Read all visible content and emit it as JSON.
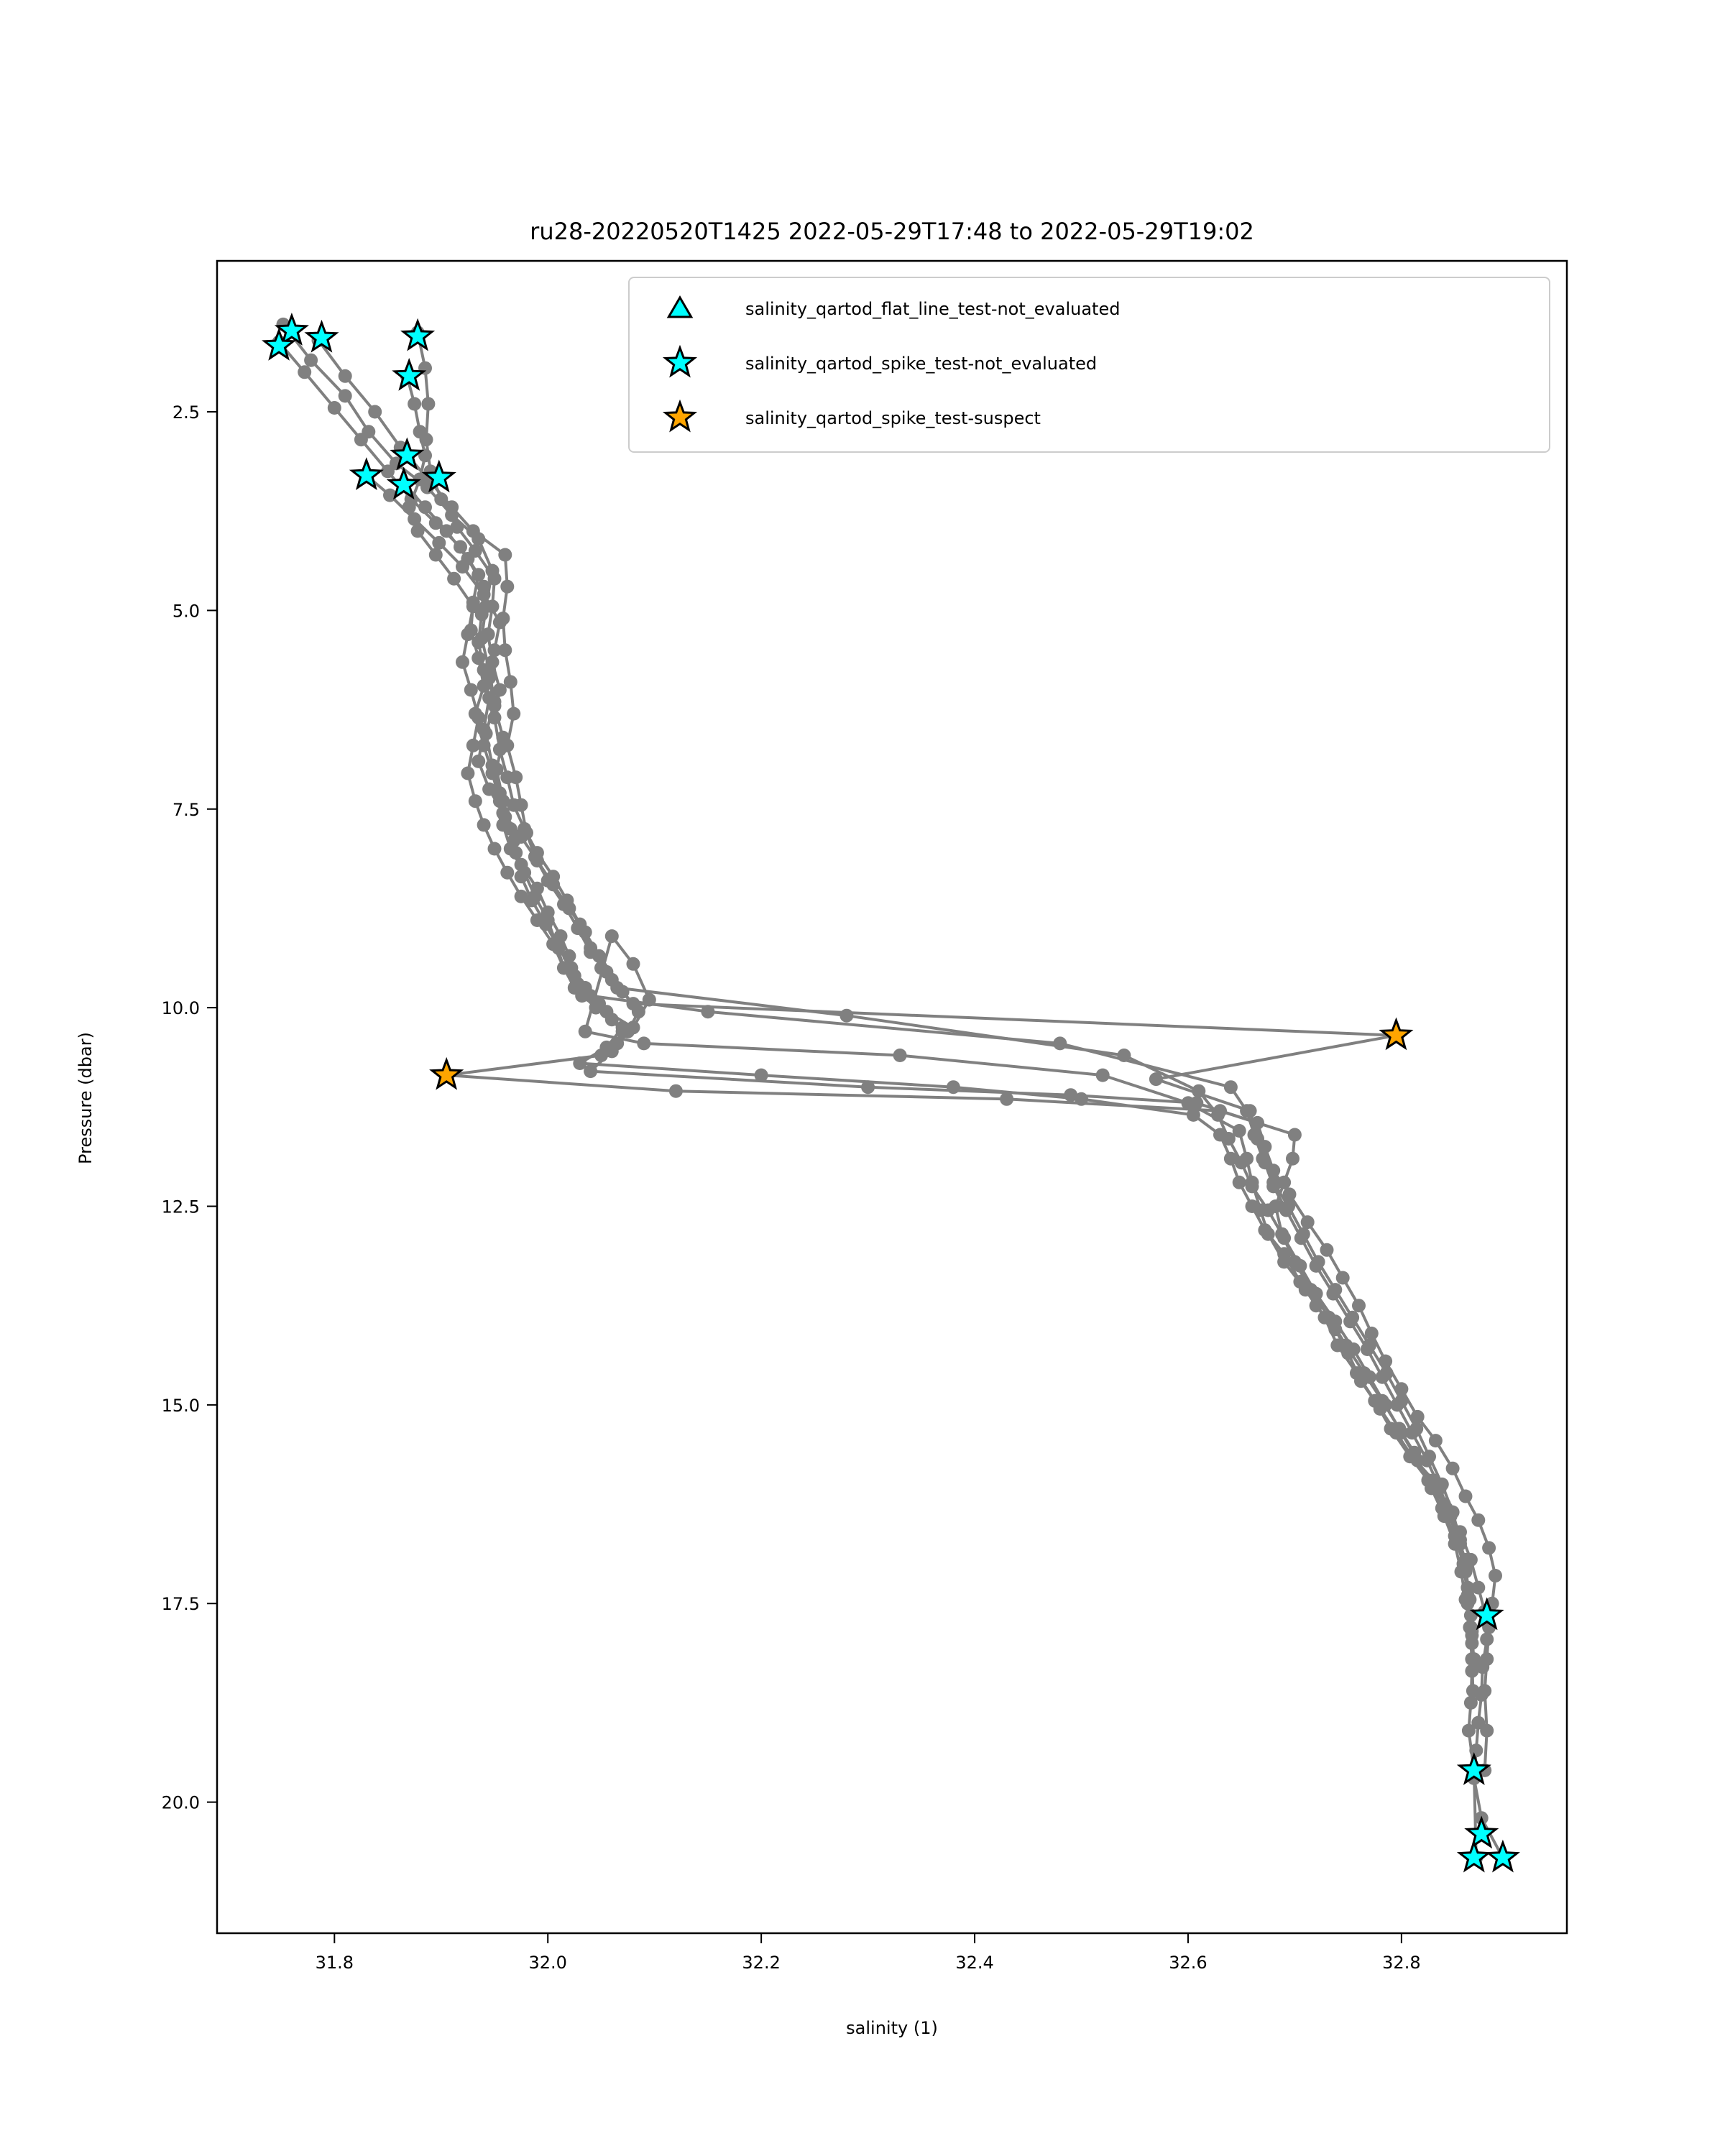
{
  "chart_data": {
    "type": "scatter",
    "title": "ru28-20220520T1425 2022-05-29T17:48 to 2022-05-29T19:02",
    "xlabel": "salinity (1)",
    "ylabel": "Pressure (dbar)",
    "xlim": [
      31.69,
      32.955
    ],
    "ylim": [
      21.65,
      0.6
    ],
    "y_inverted": true,
    "grid": false,
    "x_ticks": [
      {
        "value": 31.8,
        "label": "31.8"
      },
      {
        "value": 32.0,
        "label": "32.0"
      },
      {
        "value": 32.2,
        "label": "32.2"
      },
      {
        "value": 32.4,
        "label": "32.4"
      },
      {
        "value": 32.6,
        "label": "32.6"
      },
      {
        "value": 32.8,
        "label": "32.8"
      }
    ],
    "y_ticks": [
      {
        "value": 2.5,
        "label": "2.5"
      },
      {
        "value": 5.0,
        "label": "5.0"
      },
      {
        "value": 7.5,
        "label": "7.5"
      },
      {
        "value": 10.0,
        "label": "10.0"
      },
      {
        "value": 12.5,
        "label": "12.5"
      },
      {
        "value": 15.0,
        "label": "15.0"
      },
      {
        "value": 17.5,
        "label": "17.5"
      },
      {
        "value": 20.0,
        "label": "20.0"
      }
    ],
    "legend": {
      "placement": "top-right",
      "entries": [
        {
          "label": "salinity_qartod_flat_line_test-not_evaluated",
          "marker": "triangle",
          "color": "#00ffff"
        },
        {
          "label": "salinity_qartod_spike_test-not_evaluated",
          "marker": "star",
          "color": "#00ffff"
        },
        {
          "label": "salinity_qartod_spike_test-suspect",
          "marker": "star",
          "color": "#ffa500"
        }
      ]
    },
    "profile_color": "#808080",
    "series": [
      {
        "x": [
          31.752,
          31.778,
          31.81,
          31.832,
          31.858,
          31.887,
          31.91,
          31.935,
          31.948,
          31.942,
          31.938,
          31.945,
          31.95,
          31.942,
          31.948,
          31.955,
          31.96,
          31.968,
          31.975,
          31.99,
          32.0,
          32.012,
          32.02,
          32.025,
          32.032,
          32.055,
          32.08,
          32.095,
          32.08,
          32.06,
          32.035,
          32.09,
          32.33,
          32.52,
          32.6,
          32.648,
          32.655,
          32.66,
          32.668,
          32.675,
          32.69,
          32.71,
          32.728,
          32.74,
          32.758,
          32.775,
          32.79,
          32.808,
          32.825,
          32.84,
          32.855,
          32.865,
          32.872,
          32.878,
          32.88,
          32.876,
          32.875,
          32.872,
          32.87,
          32.868,
          32.875,
          32.895
        ],
        "y": [
          1.4,
          1.85,
          2.3,
          2.75,
          3.15,
          3.45,
          3.8,
          4.1,
          4.5,
          4.95,
          5.35,
          5.75,
          6.15,
          6.55,
          6.95,
          7.3,
          7.6,
          7.9,
          8.2,
          8.5,
          8.8,
          9.1,
          9.35,
          9.6,
          9.85,
          10.05,
          10.25,
          9.9,
          9.45,
          9.1,
          10.3,
          10.45,
          10.6,
          10.85,
          11.2,
          11.55,
          11.9,
          12.2,
          12.55,
          12.85,
          13.2,
          13.55,
          13.9,
          14.25,
          14.6,
          14.95,
          15.3,
          15.65,
          15.95,
          16.25,
          16.6,
          16.95,
          17.3,
          17.6,
          17.95,
          18.3,
          18.65,
          19.0,
          19.35,
          19.7,
          20.2,
          20.7
        ]
      },
      {
        "x": [
          31.748,
          31.772,
          31.8,
          31.825,
          31.85,
          31.872,
          31.895,
          31.918,
          31.935,
          31.93,
          31.928,
          31.935,
          31.94,
          31.932,
          31.94,
          31.948,
          31.955,
          31.958,
          31.965,
          31.978,
          31.988,
          32.0,
          32.008,
          32.015,
          32.025,
          32.045,
          32.07,
          32.055,
          32.03,
          32.2,
          32.38,
          32.5,
          32.605,
          32.63,
          32.64,
          32.648,
          32.66,
          32.672,
          32.69,
          32.705,
          32.72,
          32.738,
          32.75,
          32.762,
          32.78,
          32.795,
          32.81,
          32.83,
          32.842,
          32.852,
          32.86,
          32.862,
          32.865,
          32.866,
          32.866,
          32.865,
          32.863,
          32.868,
          32.87
        ],
        "y": [
          1.62,
          2.0,
          2.45,
          2.85,
          3.25,
          3.6,
          3.9,
          4.2,
          4.55,
          4.9,
          5.25,
          5.6,
          5.95,
          6.3,
          6.7,
          7.05,
          7.4,
          7.7,
          8.0,
          8.3,
          8.6,
          8.9,
          9.2,
          9.5,
          9.75,
          10.0,
          10.25,
          10.5,
          10.7,
          10.85,
          11.0,
          11.15,
          11.35,
          11.6,
          11.9,
          12.2,
          12.5,
          12.8,
          13.1,
          13.45,
          13.75,
          14.05,
          14.35,
          14.7,
          15.05,
          15.35,
          15.65,
          15.95,
          16.3,
          16.65,
          16.95,
          17.3,
          17.65,
          18.0,
          18.35,
          18.75,
          19.1,
          19.6,
          20.7
        ]
      },
      {
        "x": [
          31.785,
          31.81,
          31.838,
          31.862,
          31.888,
          31.91,
          31.93,
          31.96,
          31.962,
          31.958,
          31.96,
          31.965,
          31.968,
          31.962,
          31.97,
          31.975,
          31.98,
          31.988,
          32.0,
          32.015,
          32.028,
          32.04,
          32.055,
          32.07,
          32.085,
          32.075,
          32.06,
          32.04,
          32.3,
          32.49,
          32.608,
          32.665,
          32.672,
          32.68,
          32.695,
          32.712,
          32.73,
          32.745,
          32.76,
          32.772,
          32.785,
          32.8,
          32.815,
          32.832,
          32.848,
          32.86,
          32.872,
          32.882,
          32.888,
          32.885,
          32.882,
          32.88,
          32.878,
          32.88,
          32.878
        ],
        "y": [
          1.6,
          2.05,
          2.5,
          2.95,
          3.35,
          3.7,
          4.0,
          4.3,
          4.7,
          5.1,
          5.5,
          5.9,
          6.3,
          6.7,
          7.1,
          7.45,
          7.8,
          8.1,
          8.4,
          8.7,
          9.0,
          9.3,
          9.55,
          9.8,
          10.05,
          10.3,
          10.55,
          10.8,
          11.0,
          11.1,
          11.2,
          11.45,
          11.75,
          12.05,
          12.35,
          12.7,
          13.05,
          13.4,
          13.75,
          14.1,
          14.45,
          14.8,
          15.15,
          15.45,
          15.8,
          16.15,
          16.45,
          16.8,
          17.15,
          17.5,
          17.8,
          18.2,
          18.6,
          19.1,
          19.6
        ]
      },
      {
        "x": [
          31.83,
          31.852,
          31.875,
          31.898,
          31.92,
          31.94,
          31.955,
          31.95,
          31.945,
          31.95,
          31.958,
          31.952,
          31.958,
          31.965,
          31.97,
          31.975,
          31.985,
          31.998,
          32.01,
          32.022,
          32.035,
          32.048,
          32.06,
          32.07,
          32.065,
          32.05,
          31.905,
          32.12,
          32.43,
          32.63,
          32.7,
          32.698,
          32.69,
          32.682,
          32.688,
          32.7,
          32.715,
          32.732,
          32.748,
          32.765,
          32.782,
          32.798,
          32.812,
          32.825,
          32.838,
          32.85,
          32.858,
          32.862,
          32.865,
          32.868
        ],
        "y": [
          3.3,
          3.55,
          3.85,
          4.15,
          4.45,
          4.8,
          5.15,
          5.5,
          5.85,
          6.2,
          6.6,
          7.0,
          7.4,
          7.75,
          8.05,
          8.35,
          8.65,
          8.95,
          9.25,
          9.5,
          9.75,
          9.95,
          10.15,
          10.3,
          10.45,
          10.6,
          10.85,
          11.05,
          11.15,
          11.3,
          11.6,
          11.9,
          12.2,
          12.5,
          12.85,
          13.2,
          13.55,
          13.9,
          14.25,
          14.6,
          14.95,
          15.3,
          15.6,
          15.95,
          16.3,
          16.65,
          17.0,
          17.4,
          17.8,
          18.2
        ]
      },
      {
        "x": [
          31.865,
          31.885,
          31.905,
          31.925,
          31.94,
          31.938,
          31.935,
          31.94,
          31.945,
          31.94,
          31.935,
          31.945,
          31.958,
          31.975,
          31.99,
          32.005,
          32.02,
          32.035,
          32.048,
          32.06,
          32.08,
          32.795,
          32.57,
          32.658,
          32.665,
          32.672,
          32.68,
          32.692,
          32.706,
          32.72,
          32.736,
          32.752,
          32.768,
          32.782,
          32.796,
          32.81,
          32.824,
          32.836,
          32.846,
          32.855,
          32.86,
          32.862,
          32.866
        ],
        "y": [
          3.4,
          3.7,
          4.0,
          4.35,
          4.7,
          5.05,
          5.4,
          5.75,
          6.1,
          6.5,
          6.9,
          7.25,
          7.55,
          7.85,
          8.15,
          8.45,
          8.75,
          9.05,
          9.35,
          9.65,
          9.95,
          10.35,
          10.9,
          11.3,
          11.65,
          11.95,
          12.25,
          12.55,
          12.9,
          13.25,
          13.6,
          13.95,
          14.3,
          14.65,
          15.0,
          15.35,
          15.7,
          16.05,
          16.4,
          16.75,
          17.1,
          17.5,
          17.9
        ]
      },
      {
        "x": [
          31.878,
          31.885,
          31.888,
          31.886,
          31.89,
          31.9,
          31.915,
          31.932,
          31.95,
          31.948,
          31.944,
          31.948,
          31.955,
          31.95,
          31.955,
          31.962,
          31.968,
          31.978,
          31.99,
          32.005,
          32.018,
          32.03,
          32.04,
          32.05,
          32.065,
          32.28,
          32.54,
          32.61,
          32.628,
          32.638,
          32.65,
          32.66,
          32.675,
          32.69,
          32.705,
          32.72,
          32.738,
          32.755,
          32.77,
          32.785,
          32.8,
          32.815,
          32.828,
          32.84,
          32.85,
          32.856,
          32.86,
          32.864,
          32.866,
          32.867
        ],
        "y": [
          1.5,
          1.95,
          2.4,
          2.85,
          3.25,
          3.6,
          3.95,
          4.25,
          4.6,
          4.95,
          5.3,
          5.65,
          6.0,
          6.35,
          6.75,
          7.1,
          7.45,
          7.75,
          8.05,
          8.35,
          8.65,
          8.95,
          9.25,
          9.5,
          9.75,
          10.1,
          10.6,
          11.05,
          11.35,
          11.65,
          11.95,
          12.25,
          12.55,
          12.9,
          13.25,
          13.6,
          13.95,
          14.3,
          14.65,
          15.0,
          15.35,
          15.7,
          16.05,
          16.4,
          16.75,
          17.1,
          17.45,
          17.8,
          18.2,
          18.6
        ]
      },
      {
        "x": [
          31.868,
          31.875,
          31.88,
          31.885,
          31.88,
          31.87,
          31.878,
          31.895,
          31.912,
          31.93,
          31.925,
          31.92,
          31.928,
          31.935,
          31.93,
          31.925,
          31.932,
          31.94,
          31.95,
          31.962,
          31.975,
          31.99,
          32.005,
          32.015,
          32.028,
          32.04,
          32.15,
          32.48,
          32.64,
          32.655,
          32.662,
          32.67,
          32.68,
          32.694,
          32.708,
          32.722,
          32.738,
          32.754,
          32.77,
          32.786,
          32.8,
          32.814,
          32.826,
          32.838,
          32.848,
          32.855,
          32.86,
          32.864,
          32.866
        ],
        "y": [
          2.05,
          2.4,
          2.75,
          3.05,
          3.35,
          3.7,
          4.0,
          4.3,
          4.6,
          4.95,
          5.3,
          5.65,
          6.0,
          6.35,
          6.7,
          7.05,
          7.4,
          7.7,
          8.0,
          8.3,
          8.6,
          8.9,
          9.2,
          9.5,
          9.7,
          9.85,
          10.05,
          10.45,
          11.0,
          11.3,
          11.6,
          11.9,
          12.2,
          12.5,
          12.85,
          13.2,
          13.55,
          13.9,
          14.25,
          14.6,
          14.95,
          15.3,
          15.65,
          16.0,
          16.35,
          16.7,
          17.05,
          17.45,
          17.85
        ]
      }
    ],
    "flags": {
      "spike_not_evaluated": [
        {
          "x": 31.76,
          "y": 1.48
        },
        {
          "x": 31.748,
          "y": 1.67
        },
        {
          "x": 31.788,
          "y": 1.57
        },
        {
          "x": 31.878,
          "y": 1.55
        },
        {
          "x": 31.87,
          "y": 2.05
        },
        {
          "x": 31.868,
          "y": 3.05
        },
        {
          "x": 31.83,
          "y": 3.3
        },
        {
          "x": 31.865,
          "y": 3.42
        },
        {
          "x": 31.898,
          "y": 3.33
        },
        {
          "x": 32.88,
          "y": 17.65
        },
        {
          "x": 32.868,
          "y": 19.6
        },
        {
          "x": 32.875,
          "y": 20.4
        },
        {
          "x": 32.868,
          "y": 20.7
        },
        {
          "x": 32.895,
          "y": 20.7
        }
      ],
      "spike_suspect": [
        {
          "x": 32.795,
          "y": 10.35
        },
        {
          "x": 31.905,
          "y": 10.85
        }
      ],
      "flat_line_not_evaluated": []
    }
  }
}
